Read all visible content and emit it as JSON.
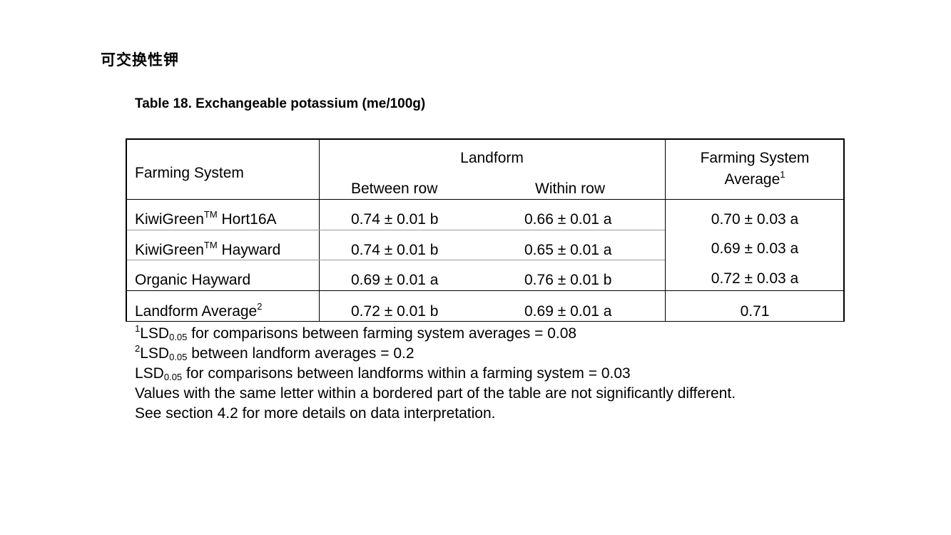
{
  "heading": "可交换性钾",
  "caption": "Table 18. Exchangeable potassium (me/100g)",
  "table": {
    "col_farming_system": "Farming System",
    "col_landform": "Landform",
    "col_between_row": "Between row",
    "col_within_row": "Within row",
    "col_avg_line1": "Farming System",
    "col_avg_line2": "Average",
    "col_avg_sup": "1",
    "rows": [
      {
        "name": "KiwiGreen",
        "sup": "TM",
        "name_rest": " Hort16A",
        "between": "0.74 ± 0.01 b",
        "within": "0.66 ± 0.01 a",
        "avg": "0.70 ± 0.03 a"
      },
      {
        "name": "KiwiGreen",
        "sup": "TM",
        "name_rest": " Hayward",
        "between": "0.74 ± 0.01 b",
        "within": "0.65 ± 0.01 a",
        "avg": "0.69 ± 0.03 a"
      },
      {
        "name": "Organic Hayward",
        "sup": "",
        "name_rest": "",
        "between": "0.69 ± 0.01 a",
        "within": "0.76 ± 0.01 b",
        "avg": "0.72 ± 0.03 a"
      }
    ],
    "avg_row": {
      "name": "Landform Average",
      "sup": "2",
      "between": "0.72 ± 0.01 b",
      "within": "0.69 ± 0.01 a",
      "avg": "0.71"
    }
  },
  "notes": {
    "n1_sup": "1",
    "n1_lsd": "LSD",
    "n1_sub": "0.05",
    "n1_text": " for comparisons between farming system averages = 0.08",
    "n2_sup": "2",
    "n2_lsd": "LSD",
    "n2_sub": "0.05",
    "n2_text": " between landform averages = 0.2",
    "n3_lsd": "LSD",
    "n3_sub": "0.05",
    "n3_text": " for comparisons between landforms within a farming system = 0.03",
    "n4": "Values with the same letter within a bordered part of the table are not significantly different.",
    "n5": "See section 4.2 for more details on data interpretation."
  }
}
